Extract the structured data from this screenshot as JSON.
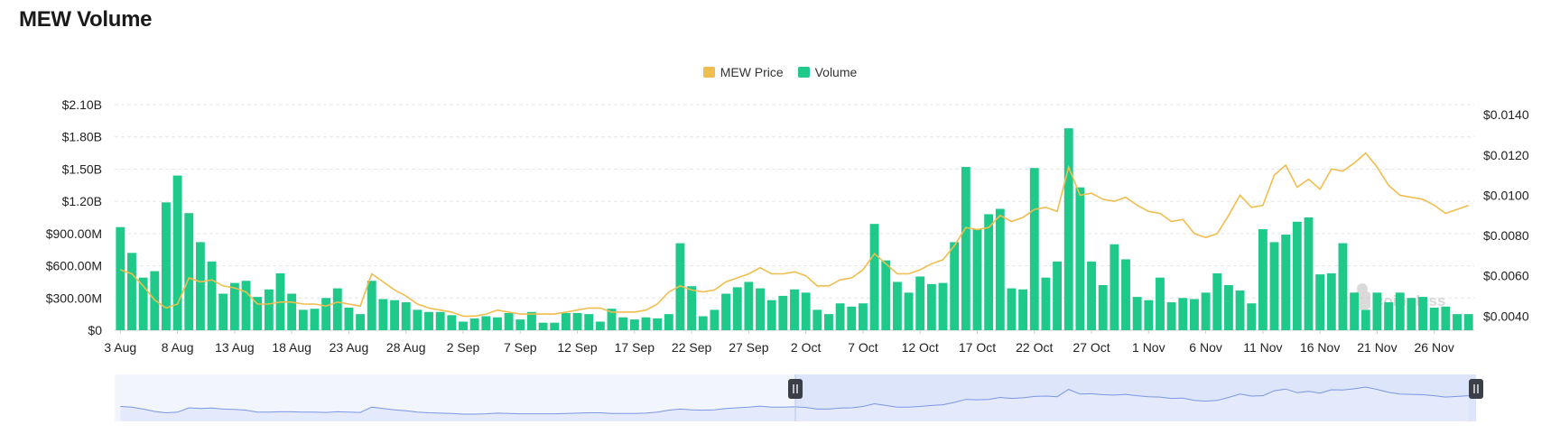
{
  "page": {
    "title": "MEW Volume"
  },
  "legend": {
    "price_label": "MEW Price",
    "volume_label": "Volume"
  },
  "colors": {
    "price": "#f0bd4f",
    "volume": "#1ec98a",
    "grid": "#e6e6e6",
    "navigator_line": "#6f8fe0",
    "navigator_fill": "#e9eefb",
    "navigator_selected": "#d4defa"
  },
  "watermark": "coinglass",
  "chart_data": {
    "type": "bar",
    "title": "MEW Volume",
    "xlabel": "",
    "ylabel": "",
    "ylabel_right": "",
    "x_tick_labels": [
      "3 Aug",
      "8 Aug",
      "13 Aug",
      "18 Aug",
      "23 Aug",
      "28 Aug",
      "2 Sep",
      "7 Sep",
      "12 Sep",
      "17 Sep",
      "22 Sep",
      "27 Sep",
      "2 Oct",
      "7 Oct",
      "12 Oct",
      "17 Oct",
      "22 Oct",
      "27 Oct",
      "1 Nov",
      "6 Nov",
      "11 Nov",
      "16 Nov",
      "21 Nov",
      "26 Nov"
    ],
    "y_left": {
      "ticks": [
        "$0",
        "$300.00M",
        "$600.00M",
        "$900.00M",
        "$1.20B",
        "$1.50B",
        "$1.80B",
        "$2.10B"
      ],
      "range": [
        0,
        2.1
      ]
    },
    "y_right": {
      "ticks": [
        "$0.0040",
        "$0.0060",
        "$0.0080",
        "$0.0100",
        "$0.0120",
        "$0.0140"
      ],
      "range": [
        0.0033,
        0.0145
      ]
    },
    "grid": true,
    "legend_position": "top-center",
    "series": [
      {
        "name": "Volume",
        "axis": "left",
        "unit": "B USD",
        "values": [
          0.96,
          0.72,
          0.49,
          0.55,
          1.19,
          1.44,
          1.09,
          0.82,
          0.64,
          0.34,
          0.44,
          0.46,
          0.31,
          0.38,
          0.53,
          0.34,
          0.19,
          0.2,
          0.3,
          0.39,
          0.21,
          0.15,
          0.46,
          0.29,
          0.28,
          0.26,
          0.19,
          0.17,
          0.17,
          0.14,
          0.08,
          0.11,
          0.13,
          0.12,
          0.16,
          0.1,
          0.17,
          0.07,
          0.07,
          0.16,
          0.16,
          0.15,
          0.08,
          0.2,
          0.12,
          0.1,
          0.12,
          0.11,
          0.15,
          0.81,
          0.41,
          0.13,
          0.19,
          0.34,
          0.4,
          0.45,
          0.39,
          0.28,
          0.32,
          0.38,
          0.35,
          0.19,
          0.15,
          0.25,
          0.22,
          0.25,
          0.99,
          0.65,
          0.45,
          0.35,
          0.5,
          0.43,
          0.44,
          0.82,
          1.52,
          0.94,
          1.08,
          1.13,
          0.39,
          0.38,
          1.51,
          0.49,
          0.64,
          1.88,
          1.33,
          0.64,
          0.42,
          0.8,
          0.66,
          0.31,
          0.28,
          0.49,
          0.26,
          0.3,
          0.29,
          0.35,
          0.53,
          0.42,
          0.37,
          0.25,
          0.94,
          0.82,
          0.89,
          1.01,
          1.05,
          0.52,
          0.53,
          0.81,
          0.35,
          0.19,
          0.35,
          0.26,
          0.35,
          0.3,
          0.31,
          0.21,
          0.22,
          0.15,
          0.15
        ]
      },
      {
        "name": "MEW Price",
        "axis": "right",
        "unit": "USD",
        "values": [
          0.0063,
          0.0061,
          0.0055,
          0.0048,
          0.0044,
          0.0046,
          0.0059,
          0.0057,
          0.0058,
          0.0055,
          0.0054,
          0.0052,
          0.0046,
          0.0046,
          0.0047,
          0.0047,
          0.0046,
          0.0046,
          0.0045,
          0.0047,
          0.0046,
          0.0045,
          0.0061,
          0.0057,
          0.0053,
          0.005,
          0.0046,
          0.0044,
          0.0043,
          0.0042,
          0.004,
          0.004,
          0.0041,
          0.0043,
          0.0042,
          0.0041,
          0.0041,
          0.0041,
          0.0041,
          0.0042,
          0.0043,
          0.0044,
          0.0044,
          0.0042,
          0.0042,
          0.0042,
          0.0043,
          0.0046,
          0.0052,
          0.0055,
          0.0053,
          0.0052,
          0.0053,
          0.0057,
          0.0059,
          0.0061,
          0.0064,
          0.0061,
          0.0061,
          0.0062,
          0.006,
          0.0055,
          0.0055,
          0.0058,
          0.0059,
          0.0063,
          0.0071,
          0.0066,
          0.0061,
          0.0061,
          0.0063,
          0.0066,
          0.0068,
          0.0075,
          0.0084,
          0.0083,
          0.0084,
          0.009,
          0.0087,
          0.0089,
          0.0093,
          0.0094,
          0.0092,
          0.0114,
          0.01,
          0.0101,
          0.0098,
          0.0097,
          0.0099,
          0.0095,
          0.0092,
          0.0091,
          0.0087,
          0.0088,
          0.0081,
          0.0079,
          0.0081,
          0.009,
          0.01,
          0.0094,
          0.0095,
          0.011,
          0.0115,
          0.0104,
          0.0108,
          0.0103,
          0.0113,
          0.0112,
          0.0116,
          0.0121,
          0.0114,
          0.0105,
          0.01,
          0.0099,
          0.0098,
          0.0095,
          0.0091,
          0.0093,
          0.0095
        ]
      }
    ]
  }
}
